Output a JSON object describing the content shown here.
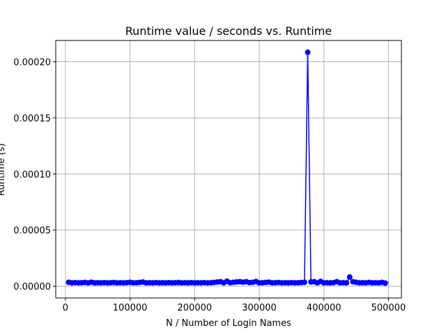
{
  "chart_data": {
    "type": "line",
    "title": "Runtime value / seconds vs. Runtime",
    "xlabel": "N / Number of Login Names",
    "ylabel": "Runtime (s)",
    "xlim": [
      -15000,
      520000
    ],
    "ylim": [
      -1.05e-05,
      0.000219
    ],
    "xticks": [
      0,
      100000,
      200000,
      300000,
      400000,
      500000
    ],
    "xtick_labels": [
      "0",
      "100000",
      "200000",
      "300000",
      "400000",
      "500000"
    ],
    "yticks": [
      0.0,
      5e-05,
      0.0001,
      0.00015,
      0.0002
    ],
    "ytick_labels": [
      "0.00000",
      "0.00005",
      "0.00010",
      "0.00015",
      "0.00020"
    ],
    "grid": true,
    "series": [
      {
        "color": "#0000ff",
        "marker": "circle",
        "x": [
          5000,
          10000,
          15000,
          20000,
          25000,
          30000,
          35000,
          40000,
          45000,
          50000,
          55000,
          60000,
          65000,
          70000,
          75000,
          80000,
          85000,
          90000,
          95000,
          100000,
          105000,
          110000,
          115000,
          120000,
          125000,
          130000,
          135000,
          140000,
          145000,
          150000,
          155000,
          160000,
          165000,
          170000,
          175000,
          180000,
          185000,
          190000,
          195000,
          200000,
          205000,
          210000,
          215000,
          220000,
          225000,
          230000,
          235000,
          240000,
          245000,
          250000,
          255000,
          260000,
          265000,
          270000,
          275000,
          280000,
          285000,
          290000,
          295000,
          300000,
          305000,
          310000,
          315000,
          320000,
          325000,
          330000,
          335000,
          340000,
          345000,
          350000,
          355000,
          360000,
          365000,
          370000,
          375000,
          380000,
          385000,
          390000,
          395000,
          400000,
          405000,
          410000,
          415000,
          420000,
          425000,
          430000,
          435000,
          440000,
          445000,
          450000,
          455000,
          460000,
          465000,
          470000,
          475000,
          480000,
          485000,
          490000,
          495000
        ],
        "y": [
          3.5e-06,
          3e-06,
          3.2e-06,
          3e-06,
          3.1e-06,
          3.4e-06,
          3e-06,
          3.6e-06,
          3e-06,
          3.1e-06,
          3e-06,
          3.2e-06,
          3e-06,
          3.1e-06,
          3.3e-06,
          3e-06,
          3.1e-06,
          3e-06,
          3.2e-06,
          3.5e-06,
          3e-06,
          3.1e-06,
          3.4e-06,
          3.7e-06,
          3e-06,
          3.1e-06,
          3e-06,
          3.2e-06,
          3e-06,
          3.1e-06,
          3e-06,
          3.2e-06,
          3e-06,
          3.1e-06,
          3.3e-06,
          3e-06,
          3.1e-06,
          3e-06,
          3.2e-06,
          3e-06,
          3.1e-06,
          3e-06,
          3.2e-06,
          3e-06,
          3.1e-06,
          3.4e-06,
          3.7e-06,
          4e-06,
          3e-06,
          4.5e-06,
          3.1e-06,
          3.5e-06,
          3.8e-06,
          4e-06,
          3.6e-06,
          4e-06,
          3.2e-06,
          3.5e-06,
          4.2e-06,
          3e-06,
          3.1e-06,
          3.4e-06,
          3.6e-06,
          3e-06,
          3.1e-06,
          3.3e-06,
          3e-06,
          3.1e-06,
          3e-06,
          3.2e-06,
          3e-06,
          3.1e-06,
          3.3e-06,
          3.5e-06,
          0.0002085,
          3.8e-06,
          4e-06,
          3e-06,
          4.3e-06,
          3e-06,
          3.1e-06,
          3e-06,
          3.2e-06,
          4e-06,
          3e-06,
          3.1e-06,
          3e-06,
          8.2e-06,
          4e-06,
          3.5e-06,
          3e-06,
          3.1e-06,
          3e-06,
          3.4e-06,
          3e-06,
          3.1e-06,
          3e-06,
          3.4e-06,
          2.8e-06
        ]
      }
    ]
  }
}
